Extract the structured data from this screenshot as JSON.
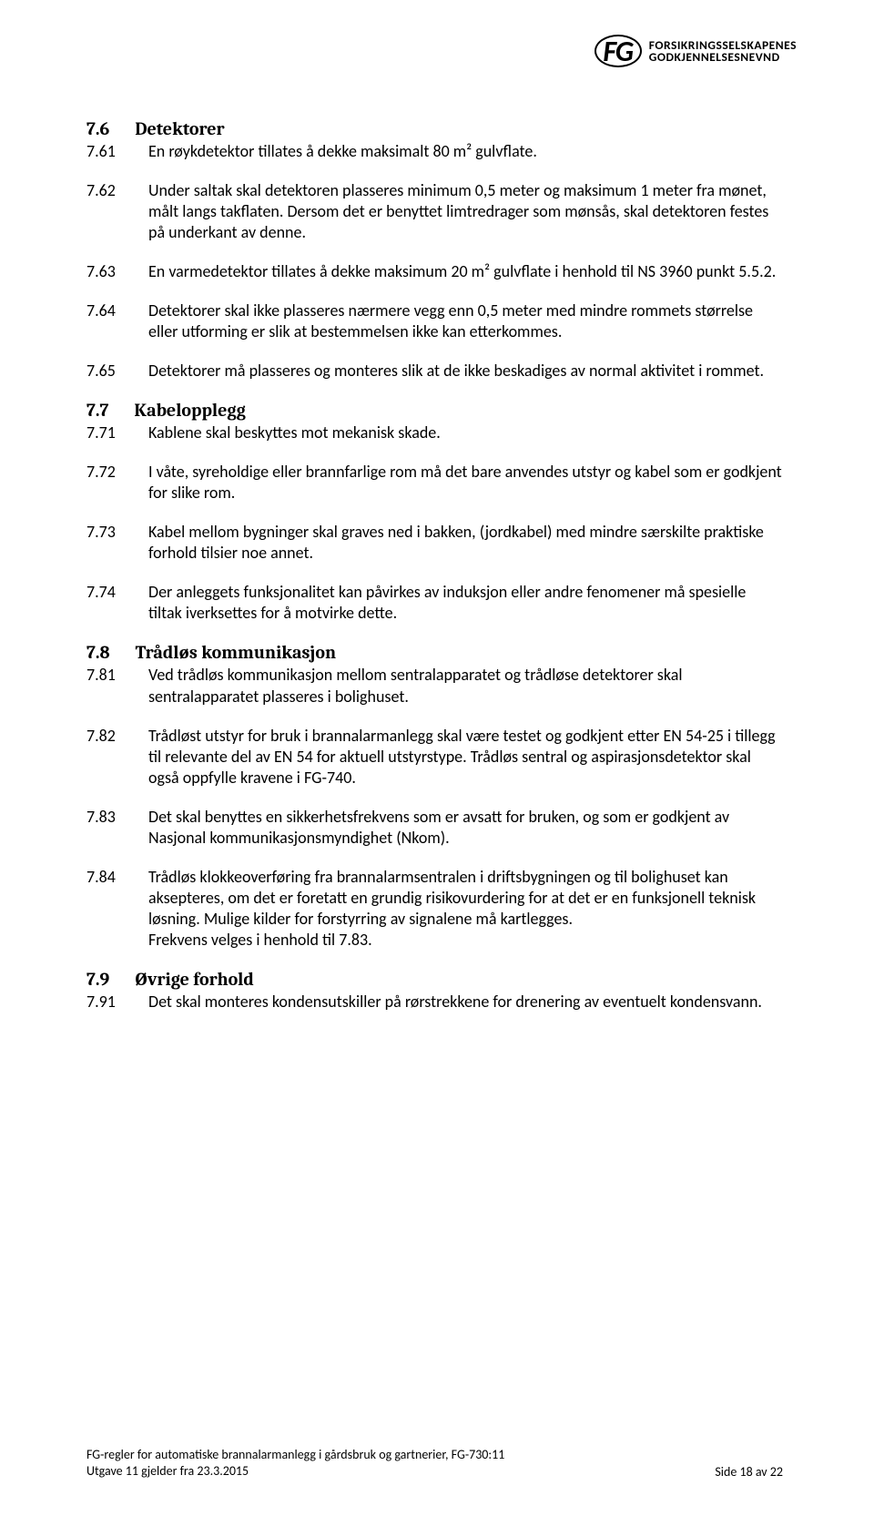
{
  "logo": {
    "mark": "FG",
    "line1": "FORSIKRINGSSELSKAPENES",
    "line2": "GODKJENNELSESNEVND"
  },
  "sections": [
    {
      "num": "7.6",
      "title": "Detektorer",
      "items": [
        {
          "num": "7.61",
          "text": "En røykdetektor tillates å dekke maksimalt 80 m² gulvflate."
        },
        {
          "num": "7.62",
          "text": "Under saltak skal detektoren plasseres minimum 0,5 meter og maksimum 1 meter fra mønet, målt langs takflaten. Dersom det er benyttet limtredrager som mønsås, skal detektoren festes på underkant av denne."
        },
        {
          "num": "7.63",
          "text": "En varmedetektor tillates å dekke maksimum 20 m² gulvflate i henhold til NS 3960 punkt 5.5.2."
        },
        {
          "num": "7.64",
          "text": "Detektorer skal ikke plasseres nærmere vegg enn 0,5 meter med mindre rommets størrelse eller utforming er slik at bestemmelsen ikke kan etterkommes."
        },
        {
          "num": "7.65",
          "text": "Detektorer må plasseres og monteres slik at de ikke beskadiges av normal aktivitet i rommet."
        }
      ]
    },
    {
      "num": "7.7",
      "title": "Kabelopplegg",
      "items": [
        {
          "num": "7.71",
          "text": "Kablene skal beskyttes mot mekanisk skade."
        },
        {
          "num": "7.72",
          "text": "I våte, syreholdige eller brannfarlige rom må det bare anvendes utstyr og kabel som er godkjent for slike rom."
        },
        {
          "num": "7.73",
          "text": "Kabel mellom bygninger skal graves ned i bakken, (jordkabel) med mindre særskilte praktiske forhold tilsier noe annet."
        },
        {
          "num": "7.74",
          "text": "Der anleggets funksjonalitet kan påvirkes av induksjon eller andre fenomener må spesielle tiltak iverksettes for å motvirke dette."
        }
      ]
    },
    {
      "num": "7.8",
      "title": "Trådløs kommunikasjon",
      "items": [
        {
          "num": "7.81",
          "text": "Ved trådløs kommunikasjon mellom sentralapparatet og trådløse detektorer skal sentralapparatet plasseres i bolighuset."
        },
        {
          "num": "7.82",
          "text": "Trådløst utstyr for bruk i brannalarmanlegg skal være testet og godkjent etter EN 54-25 i tillegg til relevante del av EN 54 for aktuell utstyrstype. Trådløs sentral og aspirasjonsdetektor skal også oppfylle kravene i FG-740."
        },
        {
          "num": "7.83",
          "text": "Det skal benyttes en sikkerhetsfrekvens som er avsatt for bruken, og som er godkjent av Nasjonal kommunikasjonsmyndighet (Nkom)."
        },
        {
          "num": "7.84",
          "text": "Trådløs klokkeoverføring fra brannalarmsentralen i driftsbygningen og til bolighuset kan aksepteres, om det er foretatt en grundig risikovurdering for at det er en funksjonell teknisk løsning. Mulige kilder for forstyrring av signalene må kartlegges.\nFrekvens velges i henhold til 7.83."
        }
      ]
    },
    {
      "num": "7.9",
      "title": "Øvrige forhold",
      "items": [
        {
          "num": "7.91",
          "text": "Det skal monteres kondensutskiller på rørstrekkene for drenering av eventuelt kondensvann."
        }
      ]
    }
  ],
  "footer": {
    "left1": "FG-regler for automatiske brannalarmanlegg i gårdsbruk og gartnerier, FG-730:11",
    "left2": "Utgave 11 gjelder fra 23.3.2015",
    "right": "Side 18 av 22"
  }
}
